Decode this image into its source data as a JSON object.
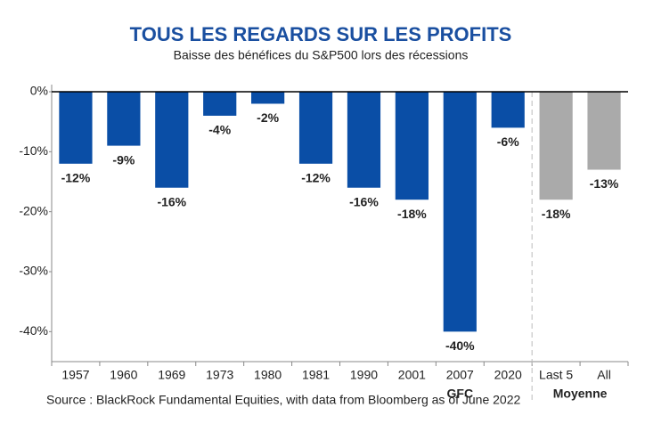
{
  "chart_data": {
    "type": "bar",
    "title": "TOUS LES REGARDS SUR LES PROFITS",
    "subtitle": "Baisse des bénéfices du S&P500 lors des récessions",
    "categories": [
      "1957",
      "1960",
      "1969",
      "1973",
      "1980",
      "1981",
      "1990",
      "2001",
      "2007",
      "2020",
      "Last 5",
      "All"
    ],
    "values": [
      -12,
      -9,
      -16,
      -4,
      -2,
      -12,
      -16,
      -18,
      -40,
      -6,
      -18,
      -13
    ],
    "value_labels": [
      "-12%",
      "-9%",
      "-16%",
      "-4%",
      "-2%",
      "-12%",
      "-16%",
      "-18%",
      "-40%",
      "-6%",
      "-18%",
      "-13%"
    ],
    "colors": [
      "#0a4ea6",
      "#0a4ea6",
      "#0a4ea6",
      "#0a4ea6",
      "#0a4ea6",
      "#0a4ea6",
      "#0a4ea6",
      "#0a4ea6",
      "#0a4ea6",
      "#0a4ea6",
      "#aaaaaa",
      "#aaaaaa"
    ],
    "group_labels": [
      "GFC",
      "Moyenne"
    ],
    "ylim": [
      -45,
      0
    ],
    "yticks": [
      {
        "value": 0,
        "label": "0%"
      },
      {
        "value": -10,
        "label": "-10%"
      },
      {
        "value": -20,
        "label": "-20%"
      },
      {
        "value": -30,
        "label": "-30%"
      },
      {
        "value": -40,
        "label": "-40%"
      }
    ],
    "source": "Source : BlackRock Fundamental Equities, with data from Bloomberg as of June 2022"
  }
}
